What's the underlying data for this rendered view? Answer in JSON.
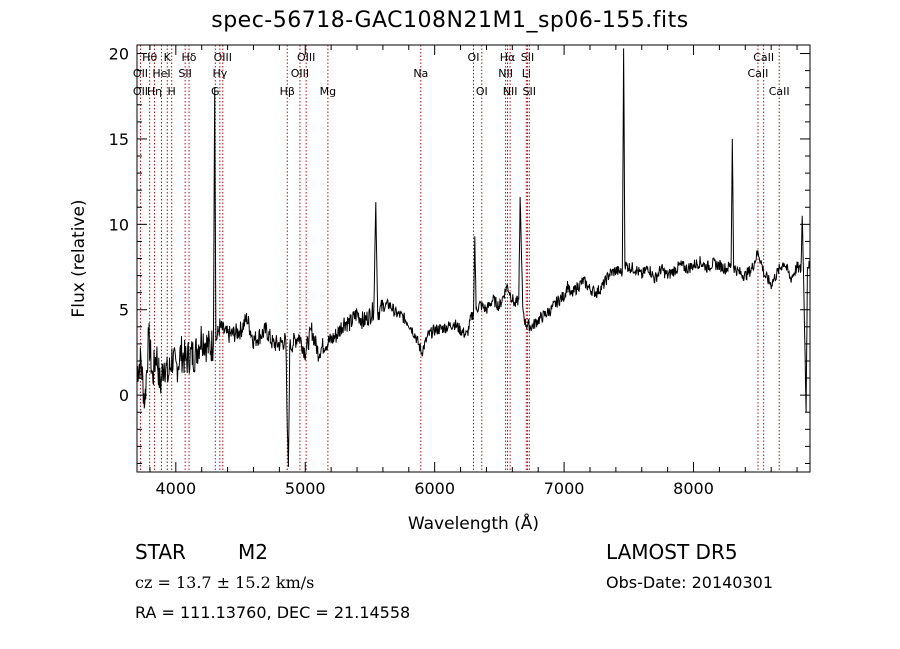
{
  "chart_data": {
    "type": "line",
    "title": "spec-56718-GAC108N21M1_sp06-155.fits",
    "xlabel": "Wavelength (Å)",
    "ylabel": "Flux (relative)",
    "xlim": [
      3700,
      8900
    ],
    "ylim": [
      -4.5,
      20.5
    ],
    "xticks": [
      4000,
      5000,
      6000,
      7000,
      8000
    ],
    "xtick_labels": [
      "4000",
      "5000",
      "6000",
      "7000",
      "8000"
    ],
    "yticks": [
      0,
      5,
      10,
      15,
      20
    ],
    "ytick_labels": [
      "0",
      "5",
      "10",
      "15",
      "20"
    ],
    "grid": false,
    "series": [
      {
        "line_color": "#000000",
        "x": [
          3700,
          3730,
          3760,
          3790,
          3820,
          3850,
          3880,
          3910,
          3940,
          3970,
          4000,
          4040,
          4080,
          4100,
          4150,
          4200,
          4250,
          4290,
          4300,
          4310,
          4340,
          4400,
          4450,
          4500,
          4550,
          4600,
          4650,
          4700,
          4750,
          4800,
          4850,
          4861,
          4870,
          4880,
          4900,
          4950,
          5000,
          5050,
          5100,
          5150,
          5200,
          5250,
          5300,
          5350,
          5400,
          5450,
          5500,
          5530,
          5545,
          5560,
          5600,
          5650,
          5700,
          5750,
          5800,
          5850,
          5900,
          5950,
          6000,
          6050,
          6100,
          6150,
          6200,
          6250,
          6280,
          6300,
          6310,
          6320,
          6350,
          6400,
          6450,
          6500,
          6550,
          6563,
          6580,
          6620,
          6650,
          6660,
          6680,
          6700,
          6750,
          6800,
          6850,
          6900,
          6950,
          7000,
          7030,
          7050,
          7100,
          7150,
          7200,
          7250,
          7300,
          7350,
          7400,
          7430,
          7450,
          7460,
          7470,
          7500,
          7550,
          7600,
          7650,
          7700,
          7750,
          7800,
          7850,
          7900,
          7950,
          8000,
          8050,
          8100,
          8150,
          8200,
          8250,
          8290,
          8300,
          8310,
          8350,
          8400,
          8450,
          8500,
          8550,
          8600,
          8650,
          8700,
          8750,
          8800,
          8830,
          8840,
          8850,
          8870,
          8880,
          8890,
          8900
        ],
        "y": [
          1.5,
          2.0,
          -0.5,
          3.5,
          1.0,
          2.5,
          0.5,
          2.0,
          1.0,
          2.2,
          1.5,
          2.5,
          2.0,
          2.3,
          2.4,
          3.5,
          2.8,
          3.0,
          18.0,
          3.2,
          4.0,
          3.5,
          3.6,
          3.8,
          4.5,
          3.2,
          3.5,
          3.8,
          3.0,
          3.0,
          3.2,
          -2.0,
          -4.2,
          2.8,
          3.0,
          3.5,
          2.5,
          3.8,
          2.5,
          3.0,
          3.2,
          3.6,
          4.3,
          4.2,
          4.8,
          4.3,
          4.7,
          5.0,
          11.3,
          4.8,
          5.2,
          5.3,
          4.8,
          4.6,
          4.2,
          3.5,
          2.5,
          3.5,
          3.8,
          3.9,
          4.0,
          4.2,
          3.8,
          3.5,
          4.5,
          4.8,
          9.3,
          5.0,
          5.3,
          5.0,
          5.6,
          5.2,
          6.2,
          6.4,
          6.0,
          5.3,
          5.6,
          11.6,
          5.2,
          4.2,
          4.0,
          4.4,
          4.7,
          5.0,
          5.5,
          5.8,
          6.5,
          5.8,
          6.3,
          6.7,
          6.2,
          6.0,
          6.4,
          7.1,
          7.3,
          7.2,
          7.2,
          20.3,
          7.6,
          7.5,
          7.4,
          7.0,
          7.5,
          6.8,
          7.4,
          7.0,
          7.3,
          7.6,
          7.4,
          7.6,
          7.8,
          7.5,
          7.7,
          7.6,
          7.4,
          7.6,
          15.0,
          7.5,
          7.2,
          7.0,
          7.4,
          8.4,
          7.0,
          6.5,
          7.2,
          7.8,
          6.8,
          7.5,
          7.3,
          10.5,
          7.2,
          -1.0,
          7.5,
          7.7,
          7.3
        ]
      }
    ],
    "lines": [
      {
        "label": "Hθ",
        "row": 1,
        "x": 3798
      },
      {
        "label": "OII",
        "row": 2,
        "x": 3727
      },
      {
        "label": "OII",
        "row": 3,
        "x": 3727
      },
      {
        "label": "Hη",
        "row": 3,
        "x": 3835
      },
      {
        "label": "K",
        "row": 1,
        "x": 3934
      },
      {
        "label": "HeI",
        "row": 2,
        "x": 3889
      },
      {
        "label": "H",
        "row": 3,
        "x": 3968
      },
      {
        "label": "Hδ",
        "row": 1,
        "x": 4102
      },
      {
        "label": "SII",
        "row": 2,
        "x": 4072
      },
      {
        "label": "OIII",
        "row": 1,
        "x": 4363
      },
      {
        "label": "Hγ",
        "row": 2,
        "x": 4340
      },
      {
        "label": "G",
        "row": 3,
        "x": 4305
      },
      {
        "label": "Hβ",
        "row": 3,
        "x": 4861
      },
      {
        "label": "OIII",
        "row": 1,
        "x": 5007
      },
      {
        "label": "OIII",
        "row": 2,
        "x": 4959
      },
      {
        "label": "Mg",
        "row": 3,
        "x": 5175
      },
      {
        "label": "Na",
        "row": 2,
        "x": 5893
      },
      {
        "label": "OI",
        "row": 1,
        "x": 6300
      },
      {
        "label": "OI",
        "row": 3,
        "x": 6364
      },
      {
        "label": "Hα",
        "row": 1,
        "x": 6563
      },
      {
        "label": "NII",
        "row": 2,
        "x": 6548
      },
      {
        "label": "NII",
        "row": 3,
        "x": 6583
      },
      {
        "label": "SII",
        "row": 1,
        "x": 6717
      },
      {
        "label": "Li",
        "row": 2,
        "x": 6708
      },
      {
        "label": "SII",
        "row": 3,
        "x": 6731
      },
      {
        "label": "CaII",
        "row": 1,
        "x": 8542
      },
      {
        "label": "CaII",
        "row": 2,
        "x": 8498
      },
      {
        "label": "CaII",
        "row": 3,
        "x": 8662
      }
    ]
  },
  "info": {
    "object_class": "STAR",
    "subclass": "M2",
    "cz": "cz = 13.7 ± 15.2 km/s",
    "radec": "RA = 111.13760, DEC =  21.14558",
    "survey": "LAMOST  DR5",
    "obs_date": "Obs-Date: 20140301"
  }
}
